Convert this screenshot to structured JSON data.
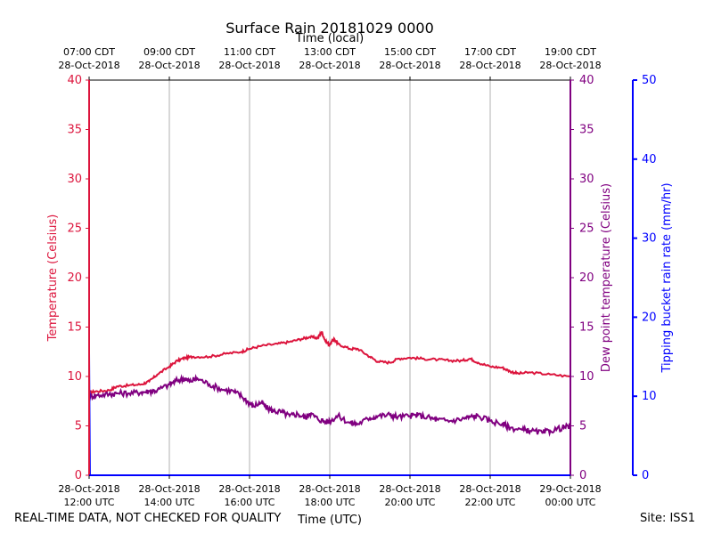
{
  "chart_data": {
    "type": "line",
    "title": "Surface Rain 20181029 0000",
    "top_axis_label": "Time (local)",
    "xlabel": "Time (UTC)",
    "ylabel_left": "Temperature (Celsius)",
    "ylabel_right": "Dew point temperature (Celsius)",
    "ylabel_far_right": "Tipping bucket rain rate (mm/hr)",
    "x_range_hours_utc": [
      12,
      24
    ],
    "ylim": [
      0,
      40
    ],
    "ylim_rain": [
      0,
      50
    ],
    "grid": "vertical",
    "left_ticks": [
      "0",
      "5",
      "10",
      "15",
      "20",
      "25",
      "30",
      "35",
      "40"
    ],
    "right_ticks": [
      "0",
      "5",
      "10",
      "15",
      "20",
      "25",
      "30",
      "35",
      "40"
    ],
    "rain_ticks": [
      "0",
      "10",
      "20",
      "30",
      "40",
      "50"
    ],
    "x_ticks_hours": [
      12,
      14,
      16,
      18,
      20,
      22,
      24
    ],
    "x_tick_labels_utc": [
      [
        "28-Oct-2018",
        "12:00 UTC"
      ],
      [
        "28-Oct-2018",
        "14:00 UTC"
      ],
      [
        "28-Oct-2018",
        "16:00 UTC"
      ],
      [
        "28-Oct-2018",
        "18:00 UTC"
      ],
      [
        "28-Oct-2018",
        "20:00 UTC"
      ],
      [
        "28-Oct-2018",
        "22:00 UTC"
      ],
      [
        "29-Oct-2018",
        "00:00 UTC"
      ]
    ],
    "x_tick_labels_local": [
      [
        "07:00 CDT",
        "28-Oct-2018"
      ],
      [
        "09:00 CDT",
        "28-Oct-2018"
      ],
      [
        "11:00 CDT",
        "28-Oct-2018"
      ],
      [
        "13:00 CDT",
        "28-Oct-2018"
      ],
      [
        "15:00 CDT",
        "28-Oct-2018"
      ],
      [
        "17:00 CDT",
        "28-Oct-2018"
      ],
      [
        "19:00 CDT",
        "28-Oct-2018"
      ]
    ],
    "series": [
      {
        "name": "Temperature",
        "color": "#dc143c",
        "x": [
          12.0,
          12.2,
          12.5,
          12.7,
          13.0,
          13.3,
          13.5,
          13.7,
          14.0,
          14.2,
          14.4,
          14.6,
          15.0,
          15.4,
          15.8,
          16.0,
          16.3,
          16.7,
          17.0,
          17.3,
          17.5,
          17.7,
          17.8,
          17.9,
          18.0,
          18.1,
          18.2,
          18.5,
          18.7,
          19.0,
          19.2,
          19.5,
          19.7,
          20.0,
          20.3,
          20.7,
          21.0,
          21.3,
          21.5,
          21.7,
          22.0,
          22.3,
          22.5,
          22.7,
          23.0,
          23.5,
          24.0
        ],
        "values": [
          8.4,
          8.5,
          8.6,
          9.0,
          9.1,
          9.2,
          9.5,
          10.2,
          11.0,
          11.6,
          11.9,
          12.0,
          12.0,
          12.3,
          12.5,
          12.8,
          13.1,
          13.3,
          13.5,
          13.8,
          14.0,
          13.9,
          14.5,
          13.5,
          13.2,
          13.8,
          13.3,
          12.8,
          12.8,
          12.0,
          11.5,
          11.4,
          11.8,
          11.9,
          11.8,
          11.7,
          11.6,
          11.6,
          11.8,
          11.4,
          11.0,
          10.9,
          10.5,
          10.3,
          10.4,
          10.2,
          10.0
        ]
      },
      {
        "name": "Dew point temperature",
        "color": "#800080",
        "x": [
          12.0,
          12.2,
          12.5,
          12.7,
          13.0,
          13.3,
          13.5,
          13.7,
          14.0,
          14.2,
          14.4,
          14.5,
          14.7,
          15.0,
          15.3,
          15.6,
          15.8,
          16.0,
          16.1,
          16.3,
          16.4,
          16.6,
          16.8,
          17.0,
          17.2,
          17.4,
          17.5,
          17.7,
          17.9,
          18.0,
          18.2,
          18.5,
          18.7,
          19.0,
          19.2,
          19.5,
          19.7,
          20.0,
          20.2,
          20.5,
          20.7,
          21.0,
          21.3,
          21.5,
          21.7,
          22.0,
          22.3,
          22.5,
          22.8,
          23.0,
          23.3,
          23.5,
          23.8,
          24.0
        ],
        "values": [
          8.0,
          8.1,
          8.2,
          8.3,
          8.3,
          8.4,
          8.5,
          8.6,
          9.2,
          9.6,
          9.8,
          9.5,
          9.8,
          9.2,
          8.7,
          8.5,
          8.0,
          7.3,
          7.0,
          7.4,
          6.9,
          6.5,
          6.4,
          6.0,
          6.2,
          5.8,
          6.3,
          5.7,
          5.4,
          5.5,
          6.0,
          5.3,
          5.2,
          5.8,
          6.0,
          6.1,
          5.9,
          6.0,
          6.1,
          5.8,
          5.6,
          5.5,
          5.7,
          5.9,
          6.0,
          5.5,
          5.2,
          4.8,
          4.6,
          4.5,
          4.3,
          4.5,
          4.8,
          5.0
        ]
      },
      {
        "name": "Tipping bucket rain rate",
        "color": "#0000ff",
        "axis": "rain",
        "x": [
          12.0,
          12.0,
          12.02,
          24.0
        ],
        "values": [
          0,
          15.5,
          0,
          0
        ]
      }
    ]
  },
  "footer": {
    "left_note": "REAL-TIME DATA, NOT CHECKED FOR QUALITY",
    "site": "Site: ISS1"
  }
}
